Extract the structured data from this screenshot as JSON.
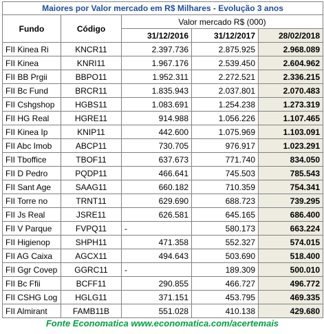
{
  "header": {
    "title": "Maiores por Valor mercado em R$ Milhares - Evolução 3 anos"
  },
  "table": {
    "columns": [
      "Fundo",
      "Código"
    ],
    "group_header": "Valor mercado R$ (000)",
    "dates": [
      "31/12/2016",
      "31/12/2017",
      "28/02/2018"
    ],
    "rows": [
      [
        "FII Kinea Ri",
        "KNCR11",
        "2.397.736",
        "2.875.925",
        "2.968.089"
      ],
      [
        "FII Kinea",
        "KNRI11",
        "1.967.176",
        "2.539.450",
        "2.604.962"
      ],
      [
        "FII BB Prgii",
        "BBPO11",
        "1.952.311",
        "2.272.521",
        "2.336.215"
      ],
      [
        "FII Bc Fund",
        "BRCR11",
        "1.835.943",
        "2.037.801",
        "2.070.483"
      ],
      [
        "FII Cshgshop",
        "HGBS11",
        "1.083.691",
        "1.254.238",
        "1.273.319"
      ],
      [
        "FII HG Real",
        "HGRE11",
        "914.988",
        "1.056.226",
        "1.107.465"
      ],
      [
        "FII Kinea Ip",
        "KNIP11",
        "442.600",
        "1.075.969",
        "1.103.091"
      ],
      [
        "FII Abc Imob",
        "ABCP11",
        "730.705",
        "976.917",
        "1.023.291"
      ],
      [
        "FII Tboffice",
        "TBOF11",
        "637.673",
        "771.740",
        "834.050"
      ],
      [
        "FII D Pedro",
        "PQDP11",
        "466.641",
        "745.503",
        "785.543"
      ],
      [
        "FII Sant Age",
        "SAAG11",
        "660.182",
        "710.359",
        "754.341"
      ],
      [
        "FII Torre no",
        "TRNT11",
        "629.690",
        "688.723",
        "739.295"
      ],
      [
        "FII Js Real",
        "JSRE11",
        "626.581",
        "645.165",
        "686.400"
      ],
      [
        "FII V Parque",
        "FVPQ11",
        "-",
        "580.173",
        "663.224"
      ],
      [
        "FII Higienop",
        "SHPH11",
        "471.358",
        "552.327",
        "574.015"
      ],
      [
        "FII AG Caixa",
        "AGCX11",
        "494.643",
        "503.690",
        "518.400"
      ],
      [
        "FII Ggr Covep",
        "GGRC11",
        "-",
        "189.309",
        "500.010"
      ],
      [
        "FII Bc Ffii",
        "BCFF11",
        "290.855",
        "466.727",
        "496.772"
      ],
      [
        "FII CSHG Log",
        "HGLG11",
        "371.151",
        "453.795",
        "469.335"
      ],
      [
        "FII Almirant",
        "FAMB11B",
        "551.028",
        "410.138",
        "429.680"
      ]
    ]
  },
  "footer": {
    "source": "Fonte Economatica www.economatica.com/acertemais"
  }
}
